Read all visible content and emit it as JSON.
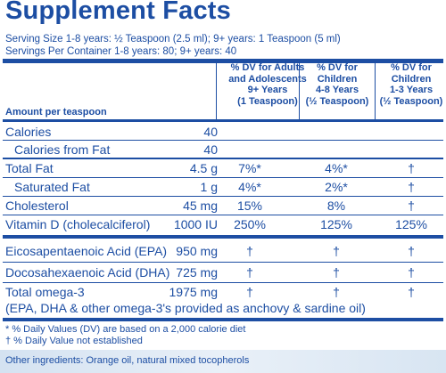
{
  "title": "Supplement Facts",
  "serving_size": "Serving Size 1-8 years: ½ Teaspoon (2.5 ml); 9+ years: 1 Teaspoon (5 ml)",
  "servings_per_container": "Servings Per Container 1-8 years: 80; 9+ years: 40",
  "columns": [
    {
      "lines": [
        "% DV for Adults",
        "and Adolescents",
        "9+ Years",
        "(1 Teaspoon)"
      ]
    },
    {
      "lines": [
        "% DV for",
        "Children",
        "4-8 Years",
        "(½ Teaspoon)"
      ]
    },
    {
      "lines": [
        "% DV for",
        "Children",
        "1-3 Years",
        "(½ Teaspoon)"
      ]
    }
  ],
  "amount_per": "Amount per teaspoon",
  "rows": [
    {
      "label": "Calories",
      "amount": "40",
      "dv": [
        "",
        "",
        ""
      ]
    },
    {
      "label": "Calories from Fat",
      "amount": "40",
      "dv": [
        "",
        "",
        ""
      ]
    },
    {
      "label": "Total Fat",
      "amount": "4.5 g",
      "dv": [
        "7%*",
        "4%*",
        "†"
      ]
    },
    {
      "label": "Saturated Fat",
      "amount": "1 g",
      "dv": [
        "4%*",
        "2%*",
        "†"
      ]
    },
    {
      "label": "Cholesterol",
      "amount": "45 mg",
      "dv": [
        "15%",
        "8%",
        "†"
      ]
    },
    {
      "label": "Vitamin D (cholecalciferol)",
      "amount": "1000 IU",
      "dv": [
        "250%",
        "125%",
        "125%"
      ]
    },
    {
      "label": "Eicosapentaenoic Acid (EPA)",
      "amount": "950 mg",
      "dv": [
        "†",
        "†",
        "†"
      ]
    },
    {
      "label": "Docosahexaenoic Acid (DHA)",
      "amount": "725 mg",
      "dv": [
        "†",
        "†",
        "†"
      ]
    },
    {
      "label": "Total omega-3",
      "amount": "1975 mg",
      "dv": [
        "†",
        "†",
        "†"
      ]
    }
  ],
  "omega_note": "(EPA, DHA & other omega-3's provided as anchovy & sardine oil)",
  "footnotes": [
    "* % Daily Values (DV) are based on a 2,000 calorie diet",
    "† % Daily Value not established"
  ],
  "other_ingredients": "Other ingredients: Orange oil, natural mixed tocopherols"
}
